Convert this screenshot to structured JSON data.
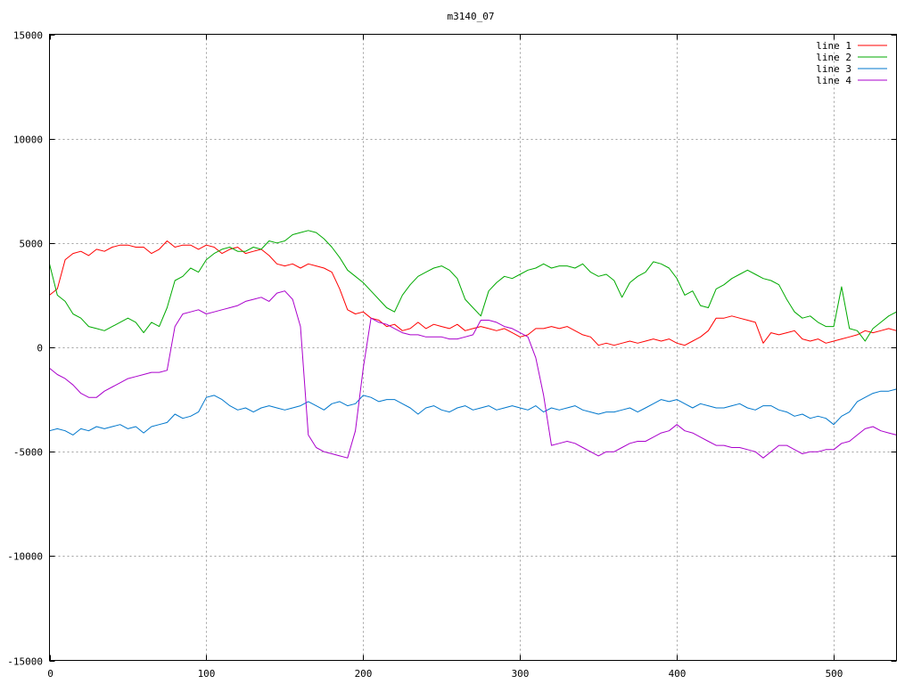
{
  "chart_data": {
    "type": "line",
    "title": "m3140_07",
    "xlabel": "",
    "ylabel": "",
    "xlim": [
      0,
      540
    ],
    "ylim": [
      -15000,
      15000
    ],
    "xticks": [
      0,
      100,
      200,
      300,
      400,
      500
    ],
    "yticks": [
      -15000,
      -10000,
      -5000,
      0,
      5000,
      10000,
      15000
    ],
    "grid": true,
    "legend_position": "top-right",
    "x": [
      0,
      5,
      10,
      15,
      20,
      25,
      30,
      35,
      40,
      45,
      50,
      55,
      60,
      65,
      70,
      75,
      80,
      85,
      90,
      95,
      100,
      105,
      110,
      115,
      120,
      125,
      130,
      135,
      140,
      145,
      150,
      155,
      160,
      165,
      170,
      175,
      180,
      185,
      190,
      195,
      200,
      205,
      210,
      215,
      220,
      225,
      230,
      235,
      240,
      245,
      250,
      255,
      260,
      265,
      270,
      275,
      280,
      285,
      290,
      295,
      300,
      305,
      310,
      315,
      320,
      325,
      330,
      335,
      340,
      345,
      350,
      355,
      360,
      365,
      370,
      375,
      380,
      385,
      390,
      395,
      400,
      405,
      410,
      415,
      420,
      425,
      430,
      435,
      440,
      445,
      450,
      455,
      460,
      465,
      470,
      475,
      480,
      485,
      490,
      495,
      500,
      505,
      510,
      515,
      520,
      525,
      530,
      535,
      540
    ],
    "series": [
      {
        "name": "line 1",
        "color": "#ff0000",
        "values": [
          2500,
          2800,
          4200,
          4500,
          4600,
          4400,
          4700,
          4600,
          4800,
          4900,
          4900,
          4800,
          4800,
          4500,
          4700,
          5100,
          4800,
          4900,
          4900,
          4700,
          4900,
          4800,
          4500,
          4700,
          4800,
          4500,
          4600,
          4700,
          4400,
          4000,
          3900,
          4000,
          3800,
          4000,
          3900,
          3800,
          3600,
          2800,
          1800,
          1600,
          1700,
          1400,
          1300,
          1000,
          1100,
          800,
          900,
          1200,
          900,
          1100,
          1000,
          900,
          1100,
          800,
          900,
          1000,
          900,
          800,
          900,
          700,
          500,
          600,
          900,
          900,
          1000,
          900,
          1000,
          800,
          600,
          500,
          100,
          200,
          100,
          200,
          300,
          200,
          300,
          400,
          300,
          400,
          200,
          100,
          300,
          500,
          800,
          1400,
          1400,
          1500,
          1400,
          1300,
          1200,
          200,
          700,
          600,
          700,
          800,
          400,
          300,
          400,
          200,
          300,
          400,
          500,
          600,
          800,
          700,
          800,
          900,
          800
        ]
      },
      {
        "name": "line 2",
        "color": "#00aa00",
        "values": [
          4000,
          2500,
          2200,
          1600,
          1400,
          1000,
          900,
          800,
          1000,
          1200,
          1400,
          1200,
          700,
          1200,
          1000,
          1900,
          3200,
          3400,
          3800,
          3600,
          4200,
          4500,
          4700,
          4800,
          4600,
          4600,
          4800,
          4700,
          5100,
          5000,
          5100,
          5400,
          5500,
          5600,
          5500,
          5200,
          4800,
          4300,
          3700,
          3400,
          3100,
          2700,
          2300,
          1900,
          1700,
          2500,
          3000,
          3400,
          3600,
          3800,
          3900,
          3700,
          3300,
          2300,
          1900,
          1500,
          2700,
          3100,
          3400,
          3300,
          3500,
          3700,
          3800,
          4000,
          3800,
          3900,
          3900,
          3800,
          4000,
          3600,
          3400,
          3500,
          3200,
          2400,
          3100,
          3400,
          3600,
          4100,
          4000,
          3800,
          3300,
          2500,
          2700,
          2000,
          1900,
          2800,
          3000,
          3300,
          3500,
          3700,
          3500,
          3300,
          3200,
          3000,
          2300,
          1700,
          1400,
          1500,
          1200,
          1000,
          1000,
          2900,
          900,
          800,
          300,
          900,
          1200,
          1500,
          1700
        ]
      },
      {
        "name": "line 3",
        "color": "#0077cc",
        "values": [
          -4000,
          -3900,
          -4000,
          -4200,
          -3900,
          -4000,
          -3800,
          -3900,
          -3800,
          -3700,
          -3900,
          -3800,
          -4100,
          -3800,
          -3700,
          -3600,
          -3200,
          -3400,
          -3300,
          -3100,
          -2400,
          -2300,
          -2500,
          -2800,
          -3000,
          -2900,
          -3100,
          -2900,
          -2800,
          -2900,
          -3000,
          -2900,
          -2800,
          -2600,
          -2800,
          -3000,
          -2700,
          -2600,
          -2800,
          -2700,
          -2300,
          -2400,
          -2600,
          -2500,
          -2500,
          -2700,
          -2900,
          -3200,
          -2900,
          -2800,
          -3000,
          -3100,
          -2900,
          -2800,
          -3000,
          -2900,
          -2800,
          -3000,
          -2900,
          -2800,
          -2900,
          -3000,
          -2800,
          -3100,
          -2900,
          -3000,
          -2900,
          -2800,
          -3000,
          -3100,
          -3200,
          -3100,
          -3100,
          -3000,
          -2900,
          -3100,
          -2900,
          -2700,
          -2500,
          -2600,
          -2500,
          -2700,
          -2900,
          -2700,
          -2800,
          -2900,
          -2900,
          -2800,
          -2700,
          -2900,
          -3000,
          -2800,
          -2800,
          -3000,
          -3100,
          -3300,
          -3200,
          -3400,
          -3300,
          -3400,
          -3700,
          -3300,
          -3100,
          -2600,
          -2400,
          -2200,
          -2100,
          -2100,
          -2000
        ]
      },
      {
        "name": "line 4",
        "color": "#aa00cc",
        "values": [
          -1000,
          -1300,
          -1500,
          -1800,
          -2200,
          -2400,
          -2400,
          -2100,
          -1900,
          -1700,
          -1500,
          -1400,
          -1300,
          -1200,
          -1200,
          -1100,
          1000,
          1600,
          1700,
          1800,
          1600,
          1700,
          1800,
          1900,
          2000,
          2200,
          2300,
          2400,
          2200,
          2600,
          2700,
          2300,
          1000,
          -4200,
          -4800,
          -5000,
          -5100,
          -5200,
          -5300,
          -4000,
          -1000,
          1400,
          1200,
          1100,
          900,
          700,
          600,
          600,
          500,
          500,
          500,
          400,
          400,
          500,
          600,
          1300,
          1300,
          1200,
          1000,
          900,
          700,
          500,
          -500,
          -2300,
          -4700,
          -4600,
          -4500,
          -4600,
          -4800,
          -5000,
          -5200,
          -5000,
          -5000,
          -4800,
          -4600,
          -4500,
          -4500,
          -4300,
          -4100,
          -4000,
          -3700,
          -4000,
          -4100,
          -4300,
          -4500,
          -4700,
          -4700,
          -4800,
          -4800,
          -4900,
          -5000,
          -5300,
          -5000,
          -4700,
          -4700,
          -4900,
          -5100,
          -5000,
          -5000,
          -4900,
          -4900,
          -4600,
          -4500,
          -4200,
          -3900,
          -3800,
          -4000,
          -4100,
          -4200
        ]
      }
    ]
  }
}
